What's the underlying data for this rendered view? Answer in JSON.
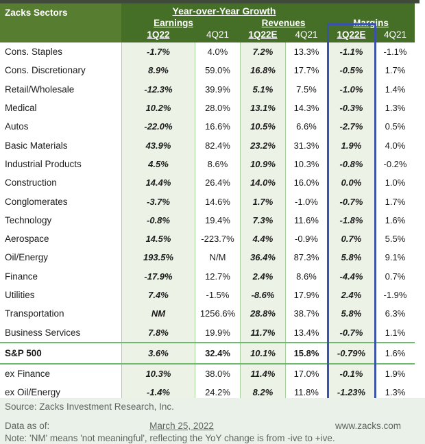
{
  "header": {
    "title": "Zacks Sectors",
    "group_title": "Year-over-Year Growth",
    "groups": [
      {
        "label": "Earnings"
      },
      {
        "label": "Revenues"
      },
      {
        "label": "Margins"
      }
    ],
    "columns": [
      "1Q22",
      "4Q21",
      "1Q22E",
      "4Q21",
      "1Q22E",
      "4Q21"
    ]
  },
  "chart_data": {
    "type": "table",
    "title": "Year-over-Year Growth",
    "row_header": "Zacks Sectors",
    "column_groups": [
      "Earnings",
      "Revenues",
      "Margins"
    ],
    "columns": [
      "Earnings 1Q22",
      "Earnings 4Q21",
      "Revenues 1Q22E",
      "Revenues 4Q21",
      "Margins 1Q22E",
      "Margins 4Q21"
    ],
    "highlighted_column": "Margins 1Q22E",
    "bold_row": "S&P 500",
    "rows": [
      [
        "Cons. Staples",
        "-1.7%",
        "4.0%",
        "7.2%",
        "13.3%",
        "-1.1%",
        "-1.1%"
      ],
      [
        "Cons. Discretionary",
        "8.9%",
        "59.0%",
        "16.8%",
        "17.7%",
        "-0.5%",
        "1.7%"
      ],
      [
        "Retail/Wholesale",
        "-12.3%",
        "39.9%",
        "5.1%",
        "7.5%",
        "-1.0%",
        "1.4%"
      ],
      [
        "Medical",
        "10.2%",
        "28.0%",
        "13.1%",
        "14.3%",
        "-0.3%",
        "1.3%"
      ],
      [
        "Autos",
        "-22.0%",
        "16.6%",
        "10.5%",
        "6.6%",
        "-2.7%",
        "0.5%"
      ],
      [
        "Basic Materials",
        "43.9%",
        "82.4%",
        "23.2%",
        "31.3%",
        "1.9%",
        "4.0%"
      ],
      [
        "Industrial Products",
        "4.5%",
        "8.6%",
        "10.9%",
        "10.3%",
        "-0.8%",
        "-0.2%"
      ],
      [
        "Construction",
        "14.4%",
        "26.4%",
        "14.0%",
        "16.0%",
        "0.0%",
        "1.0%"
      ],
      [
        "Conglomerates",
        "-3.7%",
        "14.6%",
        "1.7%",
        "-1.0%",
        "-0.7%",
        "1.7%"
      ],
      [
        "Technology",
        "-0.8%",
        "19.4%",
        "7.3%",
        "11.6%",
        "-1.8%",
        "1.6%"
      ],
      [
        "Aerospace",
        "14.5%",
        "-223.7%",
        "4.4%",
        "-0.9%",
        "0.7%",
        "5.5%"
      ],
      [
        "Oil/Energy",
        "193.5%",
        "N/M",
        "36.4%",
        "87.3%",
        "5.8%",
        "9.1%"
      ],
      [
        "Finance",
        "-17.9%",
        "12.7%",
        "2.4%",
        "8.6%",
        "-4.4%",
        "0.7%"
      ],
      [
        "Utilities",
        "7.4%",
        "-1.5%",
        "-8.6%",
        "17.9%",
        "2.4%",
        "-1.9%"
      ],
      [
        "Transportation",
        "NM",
        "1256.6%",
        "28.8%",
        "38.7%",
        "5.8%",
        "6.3%"
      ],
      [
        "Business Services",
        "7.8%",
        "19.9%",
        "11.7%",
        "13.4%",
        "-0.7%",
        "1.1%"
      ],
      [
        "S&P 500",
        "3.6%",
        "32.4%",
        "10.1%",
        "15.8%",
        "-0.79%",
        "1.6%"
      ],
      [
        "ex Finance",
        "10.3%",
        "38.0%",
        "11.4%",
        "17.0%",
        "-0.1%",
        "1.9%"
      ],
      [
        "ex Oil/Energy",
        "-1.4%",
        "24.2%",
        "8.2%",
        "11.8%",
        "-1.23%",
        "1.3%"
      ]
    ],
    "source": "Zacks Investment Research, Inc.",
    "data_as_of": "March 25, 2022"
  },
  "footer": {
    "source": "Source: Zacks Investment Research, Inc.",
    "data_as_of_label": "Data as of:",
    "data_as_of_value": "March 25, 2022",
    "website": "www.zacks.com",
    "note": "Note: 'NM' means 'not meaningful', reflecting the YoY change is from -ive to +ive."
  },
  "colors": {
    "header_green": "#456f26",
    "header_green_light": "#577d31",
    "cell_green": "#ecf2e6",
    "separator_green": "#6cbb6c",
    "highlight_blue": "#3a52a8",
    "footer_bg": "#e9f1e9"
  }
}
